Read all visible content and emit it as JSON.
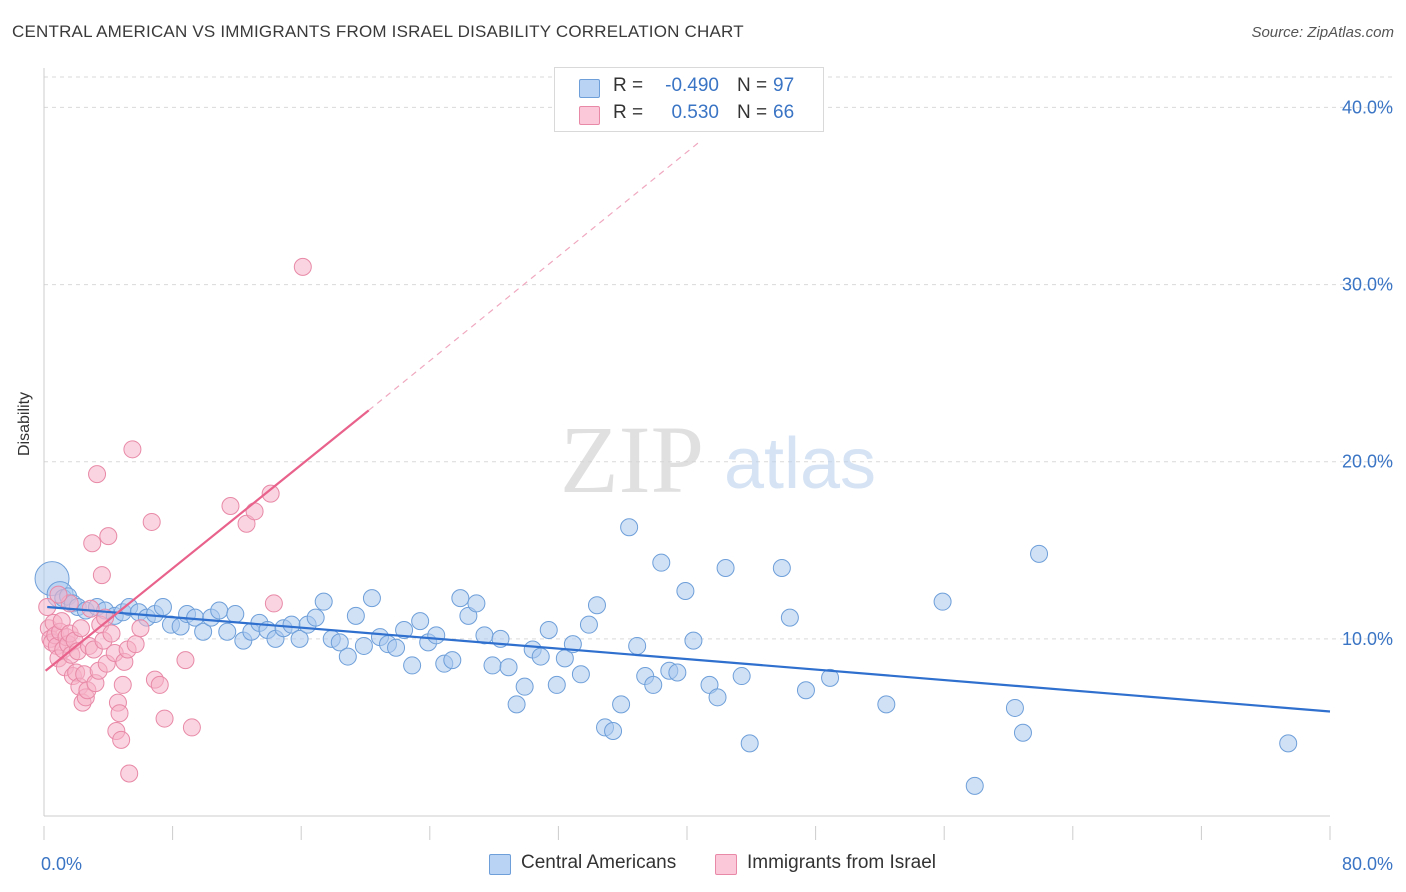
{
  "title": "CENTRAL AMERICAN VS IMMIGRANTS FROM ISRAEL DISABILITY CORRELATION CHART",
  "source": "Source: ZipAtlas.com",
  "watermark": {
    "zip": "ZIP",
    "atlas": "atlas"
  },
  "legend": {
    "r_label": "R =",
    "n_label": "N =",
    "rows": [
      {
        "r": "-0.490",
        "n": "97"
      },
      {
        "r": "0.530",
        "n": "66"
      }
    ]
  },
  "colors": {
    "blue_fill": "#a9c8ee",
    "blue_stroke": "#6e9fd9",
    "blue_line": "#2f6fce",
    "pink_fill": "#f5b3c8",
    "pink_stroke": "#e889a7",
    "pink_line": "#e8628c",
    "tick_label": "#3a74c4",
    "grid": "#d9d9d9"
  },
  "chart_data": {
    "type": "scatter",
    "xlabel": "",
    "ylabel": "Disability",
    "xlim": [
      0,
      80
    ],
    "ylim": [
      0,
      42
    ],
    "x_ticks": [
      {
        "value": 0,
        "label": "0.0%"
      },
      {
        "value": 80,
        "label": "80.0%"
      }
    ],
    "y_ticks": [
      {
        "value": 10,
        "label": "10.0%"
      },
      {
        "value": 20,
        "label": "20.0%"
      },
      {
        "value": 30,
        "label": "30.0%"
      },
      {
        "value": 40,
        "label": "40.0%"
      }
    ],
    "grid": true,
    "legend_position": "top-center",
    "series": [
      {
        "name": "Central Americans",
        "color": "#a9c8ee",
        "r": -0.49,
        "n": 97,
        "trend": {
          "x": [
            0.2,
            80
          ],
          "y": [
            11.8,
            5.9
          ]
        },
        "points": [
          [
            0.5,
            13.4
          ],
          [
            1.0,
            12.5
          ],
          [
            1.2,
            12.3
          ],
          [
            1.5,
            12.4
          ],
          [
            1.8,
            12.0
          ],
          [
            2.1,
            11.8
          ],
          [
            2.6,
            11.6
          ],
          [
            3.3,
            11.8
          ],
          [
            3.8,
            11.6
          ],
          [
            4.4,
            11.3
          ],
          [
            4.9,
            11.5
          ],
          [
            5.3,
            11.8
          ],
          [
            5.9,
            11.5
          ],
          [
            6.4,
            11.2
          ],
          [
            6.9,
            11.4
          ],
          [
            7.4,
            11.8
          ],
          [
            7.9,
            10.8
          ],
          [
            8.5,
            10.7
          ],
          [
            8.9,
            11.4
          ],
          [
            9.4,
            11.2
          ],
          [
            9.9,
            10.4
          ],
          [
            10.4,
            11.2
          ],
          [
            10.9,
            11.6
          ],
          [
            11.4,
            10.4
          ],
          [
            11.9,
            11.4
          ],
          [
            12.4,
            9.9
          ],
          [
            12.9,
            10.4
          ],
          [
            13.4,
            10.9
          ],
          [
            13.9,
            10.5
          ],
          [
            14.4,
            10.0
          ],
          [
            14.9,
            10.6
          ],
          [
            15.4,
            10.8
          ],
          [
            15.9,
            10.0
          ],
          [
            16.4,
            10.8
          ],
          [
            16.9,
            11.2
          ],
          [
            17.4,
            12.1
          ],
          [
            17.9,
            10.0
          ],
          [
            18.4,
            9.8
          ],
          [
            18.9,
            9.0
          ],
          [
            19.4,
            11.3
          ],
          [
            19.9,
            9.6
          ],
          [
            20.4,
            12.3
          ],
          [
            20.9,
            10.1
          ],
          [
            21.4,
            9.7
          ],
          [
            21.9,
            9.5
          ],
          [
            22.4,
            10.5
          ],
          [
            22.9,
            8.5
          ],
          [
            23.4,
            11.0
          ],
          [
            23.9,
            9.8
          ],
          [
            24.4,
            10.2
          ],
          [
            24.9,
            8.6
          ],
          [
            25.4,
            8.8
          ],
          [
            25.9,
            12.3
          ],
          [
            26.4,
            11.3
          ],
          [
            26.9,
            12.0
          ],
          [
            27.4,
            10.2
          ],
          [
            27.9,
            8.5
          ],
          [
            28.4,
            10.0
          ],
          [
            28.9,
            8.4
          ],
          [
            29.4,
            6.3
          ],
          [
            29.9,
            7.3
          ],
          [
            30.4,
            9.4
          ],
          [
            30.9,
            9.0
          ],
          [
            31.4,
            10.5
          ],
          [
            31.9,
            7.4
          ],
          [
            32.4,
            8.9
          ],
          [
            32.9,
            9.7
          ],
          [
            33.4,
            8.0
          ],
          [
            33.9,
            10.8
          ],
          [
            34.4,
            11.9
          ],
          [
            34.9,
            5.0
          ],
          [
            35.4,
            4.8
          ],
          [
            35.9,
            6.3
          ],
          [
            36.4,
            16.3
          ],
          [
            36.9,
            9.6
          ],
          [
            37.4,
            7.9
          ],
          [
            37.9,
            7.4
          ],
          [
            38.4,
            14.3
          ],
          [
            38.9,
            8.2
          ],
          [
            39.4,
            8.1
          ],
          [
            39.9,
            12.7
          ],
          [
            40.4,
            9.9
          ],
          [
            41.4,
            7.4
          ],
          [
            41.9,
            6.7
          ],
          [
            42.4,
            14.0
          ],
          [
            43.4,
            7.9
          ],
          [
            43.9,
            4.1
          ],
          [
            45.9,
            14.0
          ],
          [
            46.4,
            11.2
          ],
          [
            47.4,
            7.1
          ],
          [
            48.9,
            7.8
          ],
          [
            52.4,
            6.3
          ],
          [
            55.9,
            12.1
          ],
          [
            57.9,
            1.7
          ],
          [
            60.4,
            6.1
          ],
          [
            60.9,
            4.7
          ],
          [
            61.9,
            14.8
          ],
          [
            77.4,
            4.1
          ]
        ]
      },
      {
        "name": "Immigrants from Israel",
        "color": "#f5b3c8",
        "r": 0.53,
        "n": 66,
        "trend": {
          "x": [
            0.1,
            20.2
          ],
          "y": [
            8.2,
            22.9
          ]
        },
        "trend_ext": {
          "x": [
            20.2,
            40.7
          ],
          "y": [
            22.9,
            38.0
          ]
        },
        "points": [
          [
            0.2,
            11.8
          ],
          [
            0.3,
            10.6
          ],
          [
            0.4,
            10.0
          ],
          [
            0.5,
            9.8
          ],
          [
            0.6,
            10.9
          ],
          [
            0.7,
            10.2
          ],
          [
            0.8,
            9.6
          ],
          [
            0.9,
            8.9
          ],
          [
            1.0,
            10.4
          ],
          [
            1.1,
            11.0
          ],
          [
            1.2,
            9.4
          ],
          [
            1.3,
            8.4
          ],
          [
            1.4,
            10.1
          ],
          [
            1.5,
            9.7
          ],
          [
            1.6,
            10.3
          ],
          [
            1.7,
            9.1
          ],
          [
            1.8,
            7.9
          ],
          [
            1.9,
            9.9
          ],
          [
            2.0,
            8.1
          ],
          [
            2.1,
            9.3
          ],
          [
            2.2,
            7.3
          ],
          [
            2.3,
            10.6
          ],
          [
            2.4,
            6.4
          ],
          [
            2.5,
            8.0
          ],
          [
            2.6,
            6.7
          ],
          [
            2.7,
            7.1
          ],
          [
            2.8,
            9.6
          ],
          [
            2.9,
            11.7
          ],
          [
            3.0,
            15.4
          ],
          [
            3.1,
            9.4
          ],
          [
            3.2,
            7.5
          ],
          [
            3.3,
            19.3
          ],
          [
            3.4,
            8.2
          ],
          [
            3.5,
            10.8
          ],
          [
            3.6,
            13.6
          ],
          [
            3.7,
            9.9
          ],
          [
            3.8,
            11.2
          ],
          [
            3.9,
            8.6
          ],
          [
            4.0,
            15.8
          ],
          [
            4.2,
            10.3
          ],
          [
            4.4,
            9.2
          ],
          [
            4.5,
            4.8
          ],
          [
            4.6,
            6.4
          ],
          [
            4.7,
            5.8
          ],
          [
            4.8,
            4.3
          ],
          [
            4.9,
            7.4
          ],
          [
            5.0,
            8.7
          ],
          [
            5.2,
            9.4
          ],
          [
            5.3,
            2.4
          ],
          [
            5.5,
            20.7
          ],
          [
            5.7,
            9.7
          ],
          [
            6.0,
            10.6
          ],
          [
            6.7,
            16.6
          ],
          [
            6.9,
            7.7
          ],
          [
            7.2,
            7.4
          ],
          [
            7.5,
            5.5
          ],
          [
            8.8,
            8.8
          ],
          [
            9.2,
            5.0
          ],
          [
            11.6,
            17.5
          ],
          [
            12.6,
            16.5
          ],
          [
            13.1,
            17.2
          ],
          [
            14.1,
            18.2
          ],
          [
            14.3,
            12.0
          ],
          [
            16.1,
            31.0
          ],
          [
            1.6,
            12.0
          ],
          [
            0.9,
            12.5
          ]
        ]
      }
    ]
  }
}
